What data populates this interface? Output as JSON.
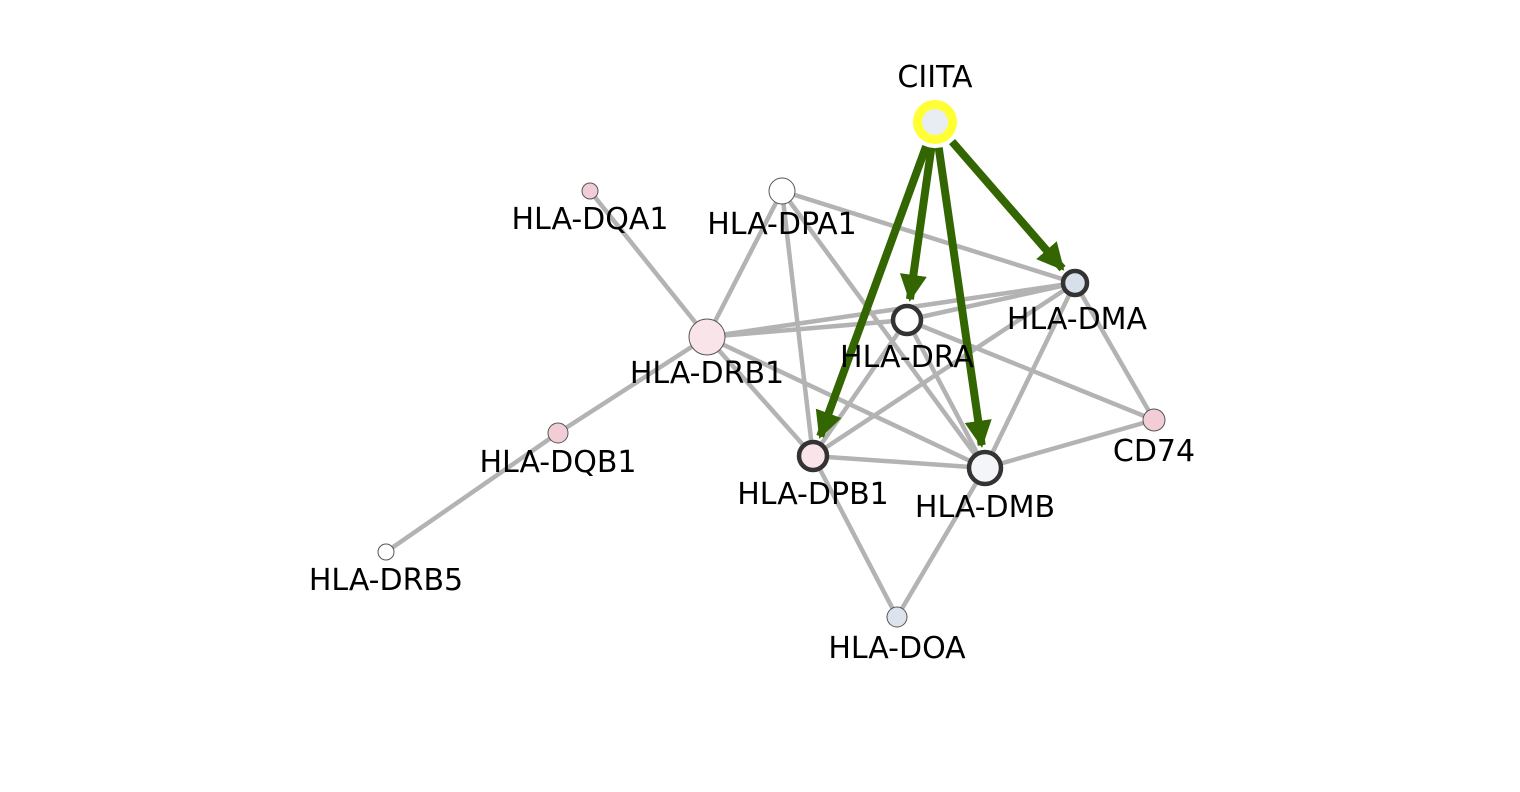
{
  "colors": {
    "background": "#ffffff",
    "edge": "#b3b3b3",
    "regulatory_edge": "#336600",
    "highlight_ring": "#ffff33",
    "node_outline_bold": "#333333",
    "node_outline_thin": "#555555"
  },
  "nodes": [
    {
      "id": "CIITA",
      "label": "CIITA",
      "fill": "#e8edf4",
      "outline": "highlight"
    },
    {
      "id": "HLA-DQA1",
      "label": "HLA-DQA1",
      "fill": "#f2cdd6",
      "outline": "thin"
    },
    {
      "id": "HLA-DPA1",
      "label": "HLA-DPA1",
      "fill": "#ffffff",
      "outline": "thin"
    },
    {
      "id": "HLA-DRB1",
      "label": "HLA-DRB1",
      "fill": "#f8e4e9",
      "outline": "thin"
    },
    {
      "id": "HLA-DRA",
      "label": "HLA-DRA",
      "fill": "#ffffff",
      "outline": "bold"
    },
    {
      "id": "HLA-DMA",
      "label": "HLA-DMA",
      "fill": "#d7e0ea",
      "outline": "bold"
    },
    {
      "id": "HLA-DQB1",
      "label": "HLA-DQB1",
      "fill": "#f2cdd6",
      "outline": "thin"
    },
    {
      "id": "CD74",
      "label": "CD74",
      "fill": "#f2cdd6",
      "outline": "thin"
    },
    {
      "id": "HLA-DPB1",
      "label": "HLA-DPB1",
      "fill": "#f8e4e9",
      "outline": "bold"
    },
    {
      "id": "HLA-DMB",
      "label": "HLA-DMB",
      "fill": "#f3f5f9",
      "outline": "bold"
    },
    {
      "id": "HLA-DRB5",
      "label": "HLA-DRB5",
      "fill": "#ffffff",
      "outline": "thin"
    },
    {
      "id": "HLA-DOA",
      "label": "HLA-DOA",
      "fill": "#dde3ec",
      "outline": "thin"
    }
  ],
  "edges": [
    {
      "source": "HLA-DQA1",
      "target": "HLA-DRB1"
    },
    {
      "source": "HLA-DPA1",
      "target": "HLA-DRB1"
    },
    {
      "source": "HLA-DPA1",
      "target": "HLA-DPB1"
    },
    {
      "source": "HLA-DPA1",
      "target": "HLA-DMB"
    },
    {
      "source": "HLA-DPA1",
      "target": "HLA-DMA"
    },
    {
      "source": "HLA-DRB1",
      "target": "HLA-DRA"
    },
    {
      "source": "HLA-DRB1",
      "target": "HLA-DMA"
    },
    {
      "source": "HLA-DRB1",
      "target": "HLA-DPB1"
    },
    {
      "source": "HLA-DRB1",
      "target": "HLA-DMB"
    },
    {
      "source": "HLA-DRB1",
      "target": "HLA-DQB1"
    },
    {
      "source": "HLA-DQB1",
      "target": "HLA-DRB5"
    },
    {
      "source": "HLA-DRA",
      "target": "HLA-DPB1"
    },
    {
      "source": "HLA-DRA",
      "target": "HLA-DMB"
    },
    {
      "source": "HLA-DRA",
      "target": "CD74"
    },
    {
      "source": "HLA-DRA",
      "target": "HLA-DMA"
    },
    {
      "source": "HLA-DMA",
      "target": "HLA-DPB1"
    },
    {
      "source": "HLA-DMA",
      "target": "HLA-DMB"
    },
    {
      "source": "HLA-DMA",
      "target": "CD74"
    },
    {
      "source": "HLA-DPB1",
      "target": "HLA-DMB"
    },
    {
      "source": "HLA-DPB1",
      "target": "HLA-DOA"
    },
    {
      "source": "HLA-DMB",
      "target": "HLA-DOA"
    },
    {
      "source": "HLA-DMB",
      "target": "CD74"
    }
  ],
  "regulatory_edges": [
    {
      "source": "CIITA",
      "target": "HLA-DPB1"
    },
    {
      "source": "CIITA",
      "target": "HLA-DRA"
    },
    {
      "source": "CIITA",
      "target": "HLA-DMB"
    },
    {
      "source": "CIITA",
      "target": "HLA-DMA"
    }
  ]
}
